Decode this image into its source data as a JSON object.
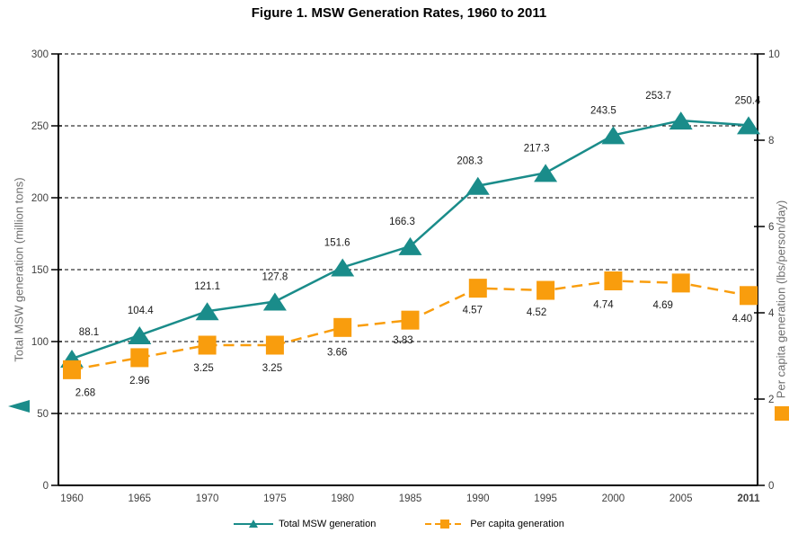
{
  "chart_data": {
    "type": "line",
    "title": "Figure 1. MSW Generation Rates, 1960 to 2011",
    "categories": [
      "1960",
      "1965",
      "1970",
      "1975",
      "1980",
      "1985",
      "1990",
      "1995",
      "2000",
      "2005",
      "2011"
    ],
    "series": [
      {
        "name": "Total MSW generation",
        "axis": "left",
        "color": "#1a8c8a",
        "marker": "triangle",
        "line_style": "solid",
        "values": [
          88.1,
          104.4,
          121.1,
          127.8,
          151.6,
          166.3,
          208.3,
          217.3,
          243.5,
          253.7,
          250.4
        ],
        "value_labels": [
          "88.1",
          "104.4",
          "121.1",
          "127.8",
          "151.6",
          "166.3",
          "208.3",
          "217.3",
          "243.5",
          "253.7",
          "250.4"
        ]
      },
      {
        "name": "Per capita generation",
        "axis": "right",
        "color": "#f99d0d",
        "marker": "square",
        "line_style": "dashed",
        "values": [
          2.68,
          2.96,
          3.25,
          3.25,
          3.66,
          3.83,
          4.57,
          4.52,
          4.74,
          4.69,
          4.4
        ],
        "value_labels": [
          "2.68",
          "2.96",
          "3.25",
          "3.25",
          "3.66",
          "3.83",
          "4.57",
          "4.52",
          "4.74",
          "4.69",
          "4.40"
        ]
      }
    ],
    "left_axis": {
      "label": "Total MSW generation (million tons)",
      "min": 0,
      "max": 300,
      "ticks": [
        0,
        50,
        100,
        150,
        200,
        250,
        300
      ]
    },
    "right_axis": {
      "label": "Per capita generation (lbs/person/day)",
      "min": 0,
      "max": 10,
      "ticks": [
        0,
        2,
        4,
        6,
        8,
        10
      ]
    },
    "grid": "horizontal-dashed",
    "legend_position": "bottom",
    "colors": {
      "grid": "#000000",
      "axis": "#000000",
      "tick_text": "#404040",
      "data_label_text": "#1a1a1a"
    }
  }
}
